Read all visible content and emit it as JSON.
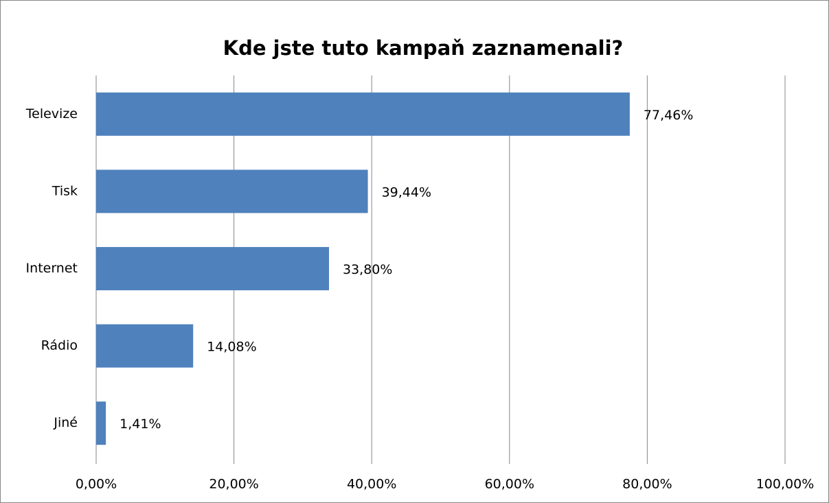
{
  "chart_data": {
    "type": "bar",
    "orientation": "horizontal",
    "title": "Kde jste tuto kampaň zaznamenali?",
    "categories": [
      "Televize",
      "Tisk",
      "Internet",
      "Rádio",
      "Jiné"
    ],
    "values": [
      77.46,
      39.44,
      33.8,
      14.08,
      1.41
    ],
    "value_labels": [
      "77,46%",
      "39,44%",
      "33,80%",
      "14,08%",
      "1,41%"
    ],
    "color": "#4f81bd",
    "xlim": [
      0,
      100
    ],
    "xticks": [
      {
        "value": 0,
        "label": "0,00%"
      },
      {
        "value": 20,
        "label": "20,00%"
      },
      {
        "value": 40,
        "label": "40,00%"
      },
      {
        "value": 60,
        "label": "60,00%"
      },
      {
        "value": 80,
        "label": "80,00%"
      },
      {
        "value": 100,
        "label": "100,00%"
      }
    ],
    "grid": true
  }
}
